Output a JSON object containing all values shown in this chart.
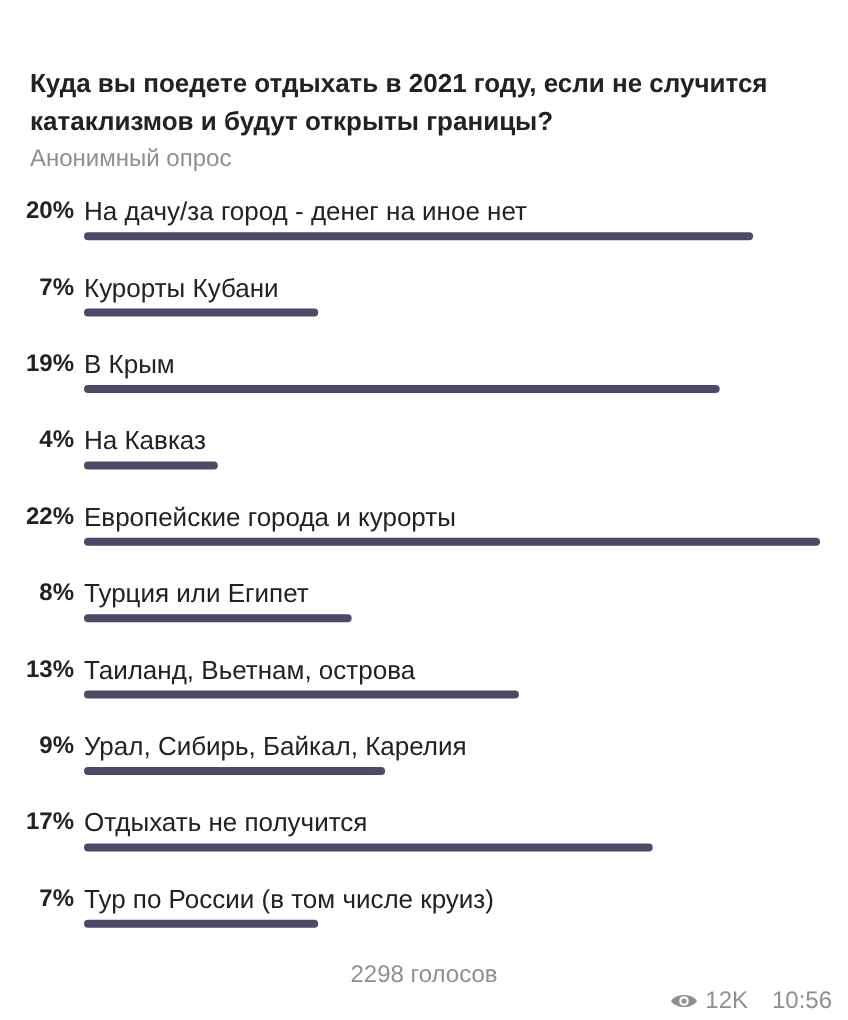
{
  "chart_data": {
    "type": "bar",
    "orientation": "horizontal",
    "title": "Куда вы поедете отдыхать в 2021 году, если не случится катаклизмов и будут открыты границы?",
    "subtitle": "Анонимный опрос",
    "categories": [
      "На дачу/за город - денег на иное нет",
      "Курорты Кубани",
      "В Крым",
      "На Кавказ",
      "Европейские города и курорты",
      "Турция или Египет",
      "Таиланд, Вьетнам, острова",
      "Урал, Сибирь, Байкал, Карелия",
      "Отдыхать не получится",
      "Тур по России (в том числе круиз)"
    ],
    "values": [
      20,
      7,
      19,
      4,
      22,
      8,
      13,
      9,
      17,
      7
    ],
    "value_labels": [
      "20%",
      "7%",
      "19%",
      "4%",
      "22%",
      "8%",
      "13%",
      "9%",
      "17%",
      "7%"
    ],
    "color": "#4b4a68",
    "tick_labels": "y",
    "annotations": [
      "2298 голосов",
      "12K",
      "10:56"
    ]
  }
}
